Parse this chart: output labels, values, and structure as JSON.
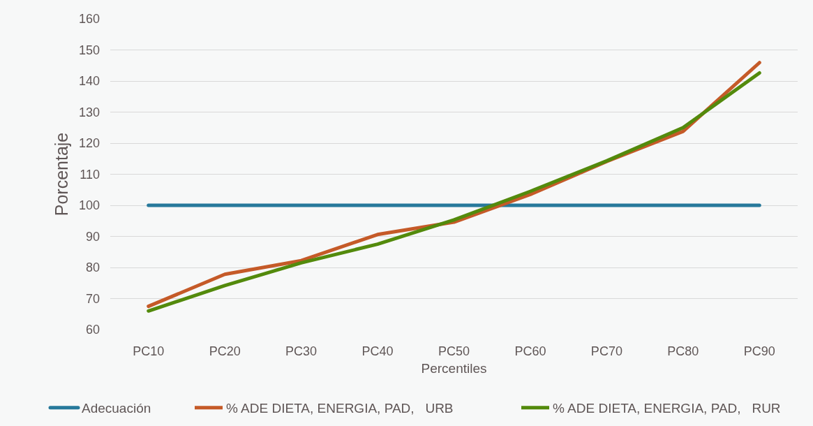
{
  "chart_data": {
    "type": "line",
    "xlabel": "Percentiles",
    "ylabel": "Porcentaje",
    "categories": [
      "PC10",
      "PC20",
      "PC30",
      "PC40",
      "PC50",
      "PC60",
      "PC70",
      "PC80",
      "PC90"
    ],
    "series": [
      {
        "name": "Adecuación",
        "color": "#27799b",
        "values": [
          100,
          100,
          100,
          100,
          100,
          100,
          100,
          100,
          100
        ]
      },
      {
        "name": "% ADE DIETA, ENERGIA, PAD,   URB",
        "color": "#c55a28",
        "values": [
          67.5,
          77.8,
          82.2,
          90.6,
          94.6,
          103.5,
          114.1,
          123.8,
          145.9
        ]
      },
      {
        "name": "% ADE DIETA, ENERGIA, PAD,   RUR",
        "color": "#538a0c",
        "values": [
          66.0,
          74.2,
          81.5,
          87.5,
          95.3,
          104.5,
          114.3,
          125.0,
          142.6
        ]
      }
    ],
    "ylim": [
      60,
      160
    ],
    "yticks": [
      60,
      70,
      80,
      90,
      100,
      110,
      120,
      130,
      140,
      150,
      160
    ],
    "grid": "y",
    "legend": "bottom",
    "line_style": "solid"
  }
}
